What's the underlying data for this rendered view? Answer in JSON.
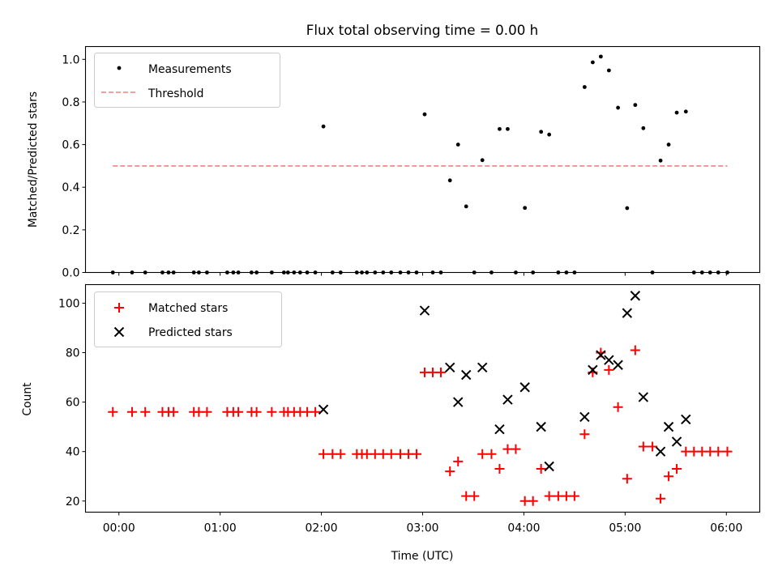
{
  "chart_data": [
    {
      "type": "scatter",
      "title": "Flux total observing time = 0.00 h",
      "xlabel": "",
      "ylabel": "Matched/Predicted stars",
      "xlim": [
        -0.33,
        6.33
      ],
      "ylim": [
        0.0,
        1.06
      ],
      "yticks": [
        0.0,
        0.2,
        0.4,
        0.6,
        0.8,
        1.0
      ],
      "ytick_labels": [
        "0.0",
        "0.2",
        "0.4",
        "0.6",
        "0.8",
        "1.0"
      ],
      "legend": {
        "position": "upper-left",
        "entries": [
          "Measurements",
          "Threshold"
        ]
      },
      "series": [
        {
          "name": "Measurements",
          "marker": "dot",
          "color": "#000000",
          "x": [
            -0.06,
            0.13,
            0.26,
            0.43,
            0.49,
            0.54,
            0.74,
            0.79,
            0.87,
            1.07,
            1.13,
            1.18,
            1.31,
            1.36,
            1.51,
            1.63,
            1.67,
            1.73,
            1.79,
            1.86,
            1.94,
            2.02,
            2.11,
            2.19,
            2.35,
            2.4,
            2.45,
            2.53,
            2.61,
            2.69,
            2.78,
            2.86,
            2.94,
            3.02,
            3.1,
            3.18,
            3.27,
            3.35,
            3.43,
            3.51,
            3.59,
            3.68,
            3.76,
            3.84,
            3.92,
            4.01,
            4.09,
            4.17,
            4.25,
            4.34,
            4.42,
            4.5,
            4.6,
            4.68,
            4.76,
            4.84,
            4.93,
            5.02,
            5.1,
            5.18,
            5.27,
            5.35,
            5.43,
            5.51,
            5.6,
            5.68,
            5.76,
            5.84,
            5.92,
            6.01
          ],
          "y": [
            0,
            0,
            0,
            0,
            0,
            0,
            0,
            0,
            0,
            0,
            0,
            0,
            0,
            0,
            0,
            0,
            0,
            0,
            0,
            0,
            0,
            0.685,
            0,
            0,
            0,
            0,
            0,
            0,
            0,
            0,
            0,
            0,
            0,
            0.742,
            0,
            0,
            0.432,
            0.6,
            0.31,
            0,
            0.527,
            0,
            0.673,
            0.673,
            0,
            0.303,
            0,
            0.66,
            0.647,
            0,
            0,
            0,
            0.87,
            0.986,
            1.013,
            0.948,
            0.773,
            0.302,
            0.786,
            0.677,
            0,
            0.525,
            0.6,
            0.75,
            0.755,
            0,
            0,
            0,
            0,
            0
          ]
        },
        {
          "name": "Threshold",
          "style": "dashed",
          "color": "#f08080",
          "x": [
            -0.06,
            6.01
          ],
          "y": [
            0.5,
            0.5
          ]
        }
      ]
    },
    {
      "type": "scatter",
      "title": "",
      "xlabel": "Time (UTC)",
      "ylabel": "Count",
      "xlim": [
        -0.33,
        6.33
      ],
      "ylim": [
        15.5,
        107.5
      ],
      "xticks": [
        0,
        1,
        2,
        3,
        4,
        5,
        6
      ],
      "xtick_labels": [
        "00:00",
        "01:00",
        "02:00",
        "03:00",
        "04:00",
        "05:00",
        "06:00"
      ],
      "yticks": [
        20,
        40,
        60,
        80,
        100
      ],
      "ytick_labels": [
        "20",
        "40",
        "60",
        "80",
        "100"
      ],
      "legend": {
        "position": "upper-left",
        "entries": [
          "Matched stars",
          "Predicted stars"
        ]
      },
      "series": [
        {
          "name": "Matched stars",
          "marker": "plus",
          "color": "#ff0000",
          "x": [
            -0.06,
            0.13,
            0.26,
            0.43,
            0.49,
            0.54,
            0.74,
            0.79,
            0.87,
            1.07,
            1.13,
            1.18,
            1.31,
            1.36,
            1.51,
            1.63,
            1.67,
            1.73,
            1.79,
            1.86,
            1.94,
            2.02,
            2.11,
            2.19,
            2.35,
            2.4,
            2.45,
            2.53,
            2.61,
            2.69,
            2.78,
            2.86,
            2.94,
            3.02,
            3.1,
            3.18,
            3.27,
            3.35,
            3.43,
            3.51,
            3.59,
            3.68,
            3.76,
            3.84,
            3.92,
            4.01,
            4.09,
            4.17,
            4.25,
            4.34,
            4.42,
            4.5,
            4.6,
            4.68,
            4.76,
            4.84,
            4.93,
            5.02,
            5.1,
            5.18,
            5.27,
            5.35,
            5.43,
            5.51,
            5.6,
            5.68,
            5.76,
            5.84,
            5.92,
            6.01
          ],
          "y": [
            56,
            56,
            56,
            56,
            56,
            56,
            56,
            56,
            56,
            56,
            56,
            56,
            56,
            56,
            56,
            56,
            56,
            56,
            56,
            56,
            56,
            39,
            39,
            39,
            39,
            39,
            39,
            39,
            39,
            39,
            39,
            39,
            39,
            72,
            72,
            72,
            32,
            36,
            22,
            22,
            39,
            39,
            33,
            41,
            41,
            20,
            20,
            33,
            22,
            22,
            22,
            22,
            47,
            72,
            80,
            73,
            58,
            29,
            81,
            42,
            42,
            21,
            30,
            33,
            40,
            40,
            40,
            40,
            40,
            40
          ]
        },
        {
          "name": "Predicted stars",
          "marker": "x",
          "color": "#000000",
          "x": [
            2.02,
            3.02,
            3.27,
            3.35,
            3.43,
            3.59,
            3.76,
            3.84,
            4.01,
            4.17,
            4.25,
            4.6,
            4.68,
            4.76,
            4.84,
            4.93,
            5.02,
            5.1,
            5.18,
            5.35,
            5.43,
            5.51,
            5.6
          ],
          "y": [
            57,
            97,
            74,
            60,
            71,
            74,
            49,
            61,
            66,
            50,
            34,
            54,
            73,
            79,
            77,
            75,
            96,
            103,
            62,
            40,
            50,
            44,
            53
          ]
        }
      ]
    }
  ]
}
